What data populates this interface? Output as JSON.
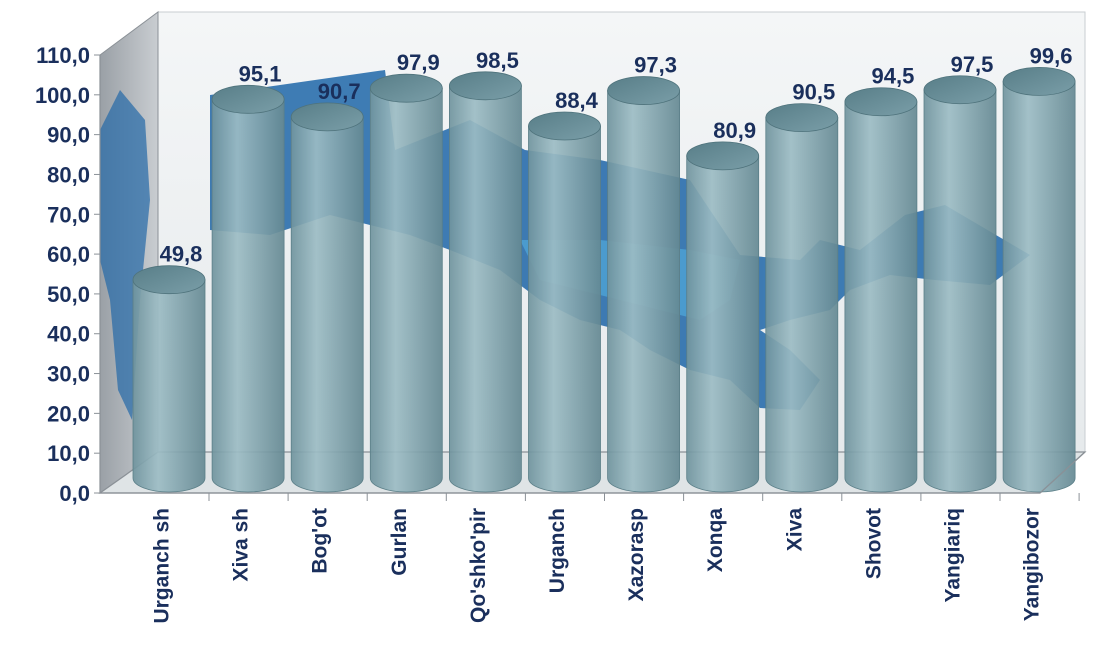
{
  "chart_data": {
    "type": "bar",
    "style": "3d-cylinder",
    "title": "",
    "xlabel": "",
    "ylabel": "",
    "ylim": [
      0,
      110
    ],
    "ytick_step": 10,
    "ytick_labels": [
      "0,0",
      "10,0",
      "20,0",
      "30,0",
      "40,0",
      "50,0",
      "60,0",
      "70,0",
      "80,0",
      "90,0",
      "100,0",
      "110,0"
    ],
    "grid": false,
    "legend": "none",
    "categories": [
      "Urganch sh",
      "Xiva sh",
      "Bog'ot",
      "Gurlan",
      "Qo'shko'pir",
      "Urganch",
      "Xazorasp",
      "Xonqa",
      "Xiva",
      "Shovot",
      "Yangiariq",
      "Yangibozor"
    ],
    "values": [
      49.8,
      95.1,
      90.7,
      97.9,
      98.5,
      88.4,
      97.3,
      80.9,
      90.5,
      94.5,
      97.5,
      99.6
    ],
    "value_labels": [
      "49,8",
      "95,1",
      "90,7",
      "97,9",
      "98,5",
      "88,4",
      "97,3",
      "80,9",
      "90,5",
      "94,5",
      "97,5",
      "99,6"
    ],
    "colors": {
      "bar": "#7fa3ad",
      "bar_top": "#5f8892",
      "text": "#1a2f5c",
      "map": "#1f66a8",
      "map_light": "#3aa6e0"
    }
  }
}
